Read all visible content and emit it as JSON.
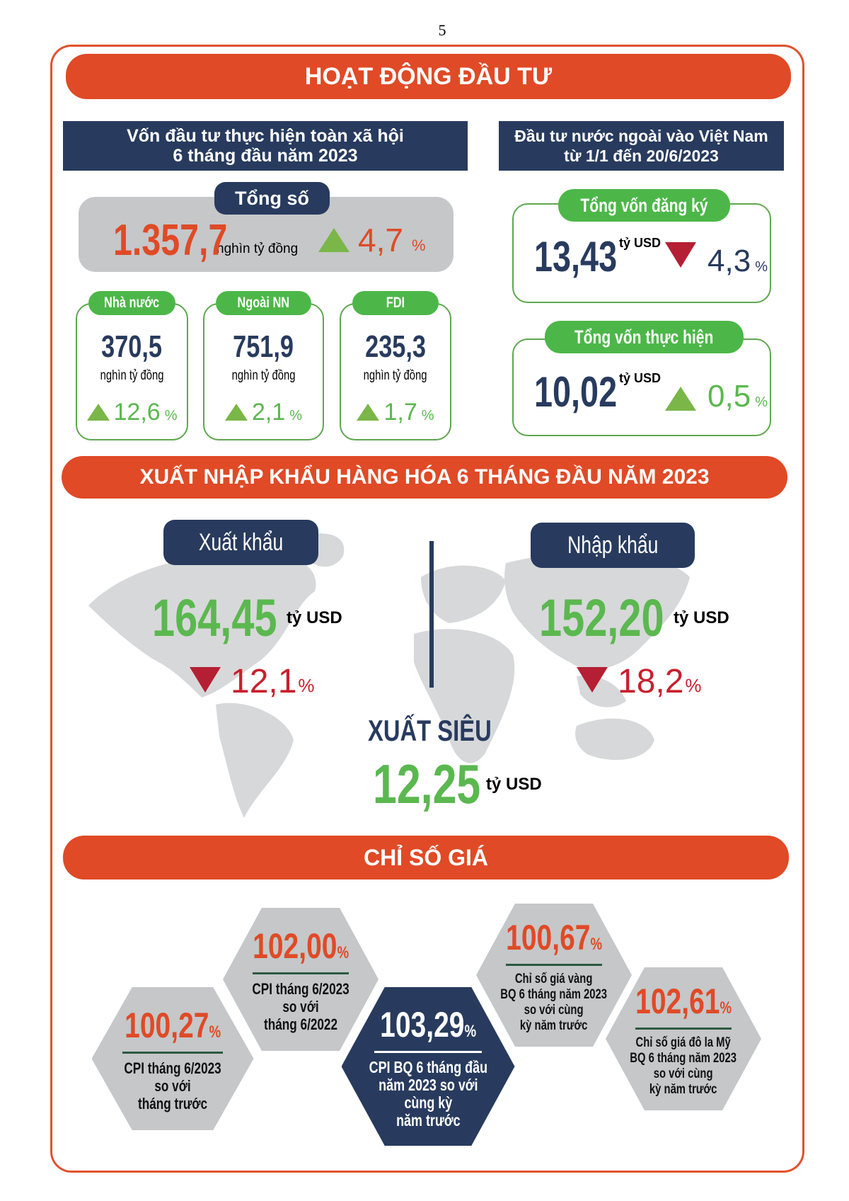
{
  "page_number": "5",
  "investment": {
    "title": "HOẠT ĐỘNG ĐẦU TƯ",
    "domestic": {
      "heading_line1": "Vốn đầu tư thực hiện toàn xã hội",
      "heading_line2": "6 tháng đầu năm 2023",
      "total": {
        "label": "Tổng số",
        "value": "1.357,7",
        "unit": "nghìn tỷ đồng",
        "change": "4,7",
        "pct": "%",
        "direction": "up"
      },
      "items": [
        {
          "label": "Nhà nước",
          "value": "370,5",
          "unit": "nghìn tỷ đồng",
          "change": "12,6",
          "pct": "%",
          "direction": "up"
        },
        {
          "label": "Ngoài NN",
          "value": "751,9",
          "unit": "nghìn tỷ đồng",
          "change": "2,1",
          "pct": "%",
          "direction": "up"
        },
        {
          "label": "FDI",
          "value": "235,3",
          "unit": "nghìn tỷ đồng",
          "change": "1,7",
          "pct": "%",
          "direction": "up"
        }
      ]
    },
    "foreign": {
      "heading_line1": "Đầu tư nước ngoài vào Việt Nam",
      "heading_line2": "từ 1/1 đến 20/6/2023",
      "items": [
        {
          "label": "Tổng vốn đăng ký",
          "value": "13,43",
          "unit": "tỷ USD",
          "change": "4,3",
          "pct": "%",
          "direction": "down"
        },
        {
          "label": "Tổng vốn thực hiện",
          "value": "10,02",
          "unit": "tỷ USD",
          "change": "0,5",
          "pct": "%",
          "direction": "up"
        }
      ]
    }
  },
  "trade": {
    "title": "XUẤT NHẬP KHẨU HÀNG HÓA 6 THÁNG ĐẦU NĂM 2023",
    "export": {
      "label": "Xuất khẩu",
      "value": "164,45",
      "unit": "tỷ USD",
      "change": "12,1",
      "pct": "%",
      "direction": "down"
    },
    "import": {
      "label": "Nhập khẩu",
      "value": "152,20",
      "unit": "tỷ USD",
      "change": "18,2",
      "pct": "%",
      "direction": "down"
    },
    "surplus": {
      "label": "XUẤT SIÊU",
      "value": "12,25",
      "unit": "tỷ USD"
    }
  },
  "prices": {
    "title": "CHỈ SỐ GIÁ",
    "items": [
      {
        "value": "100,27",
        "pct": "%",
        "desc": [
          "CPI tháng 6/2023",
          "so với",
          "tháng trước"
        ]
      },
      {
        "value": "102,00",
        "pct": "%",
        "desc": [
          "CPI tháng 6/2023",
          "so với",
          "tháng 6/2022"
        ]
      },
      {
        "value": "103,29",
        "pct": "%",
        "desc": [
          "CPI BQ 6 tháng đầu",
          "năm 2023 so với",
          "cùng kỳ",
          "năm trước"
        ]
      },
      {
        "value": "100,67",
        "pct": "%",
        "desc": [
          "Chỉ số giá vàng",
          "BQ 6 tháng năm 2023",
          "so với cùng",
          "kỳ năm trước"
        ]
      },
      {
        "value": "102,61",
        "pct": "%",
        "desc": [
          "Chỉ số giá đô la Mỹ",
          "BQ 6 tháng năm 2023",
          "so với cùng",
          "kỳ năm trước"
        ]
      }
    ]
  },
  "colors": {
    "orange": "#e04a26",
    "navy": "#283b5e",
    "green": "#4cb748",
    "red": "#c8202e",
    "gray": "#c5c7c9"
  }
}
